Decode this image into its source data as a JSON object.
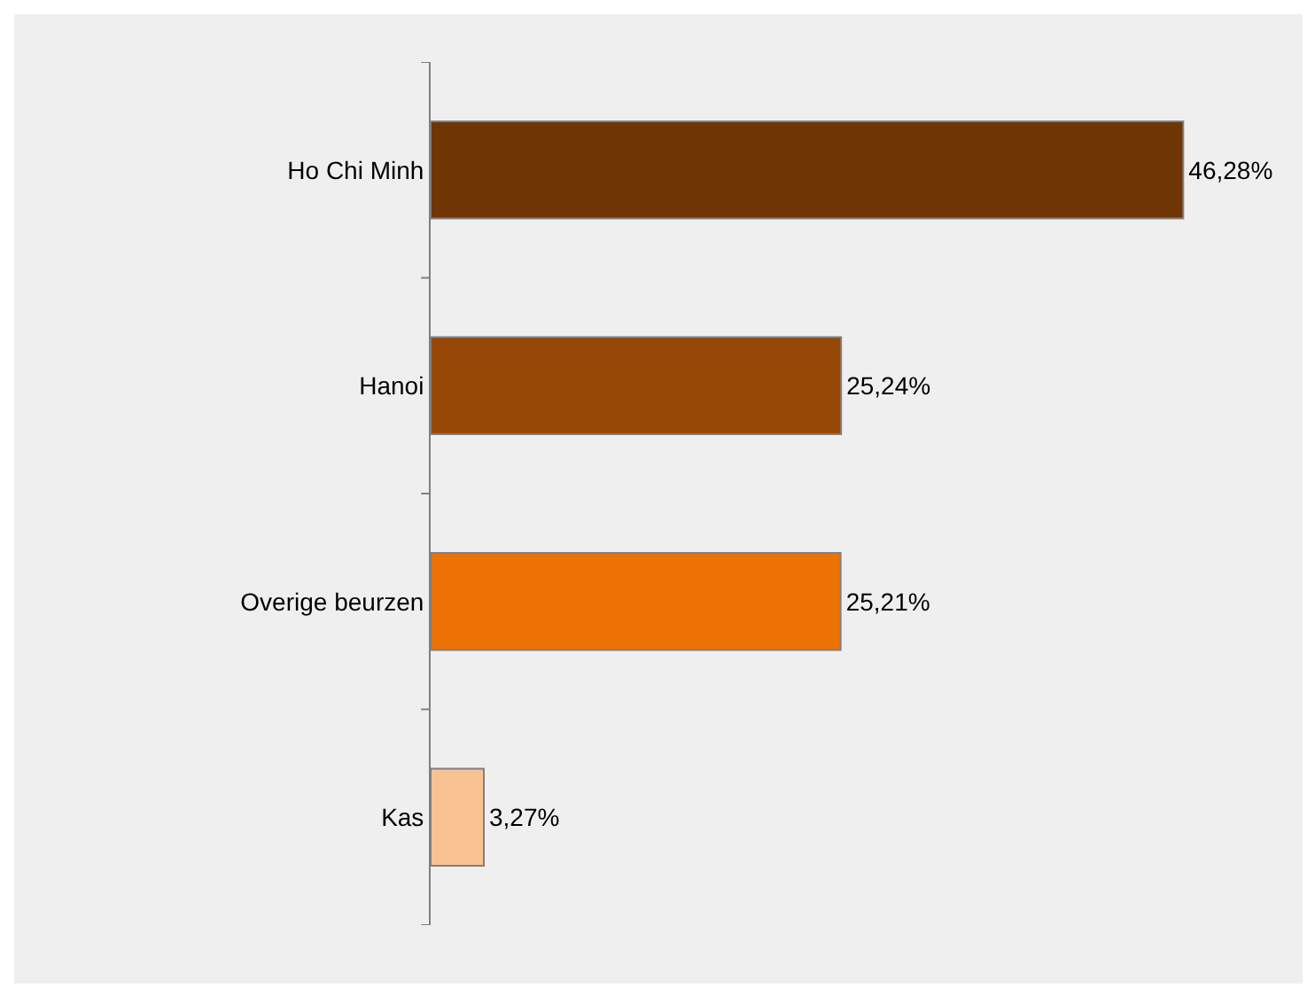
{
  "chart_data": {
    "type": "bar",
    "orientation": "horizontal",
    "categories": [
      "Ho Chi Minh",
      "Hanoi",
      "Overige beurzen",
      "Kas"
    ],
    "values": [
      46.28,
      25.24,
      25.21,
      3.27
    ],
    "colors": [
      "#6f3504",
      "#974807",
      "#ec7206",
      "#f9c293"
    ],
    "value_labels": [
      "46,28%",
      "25,24%",
      "25,21%",
      "3,27%"
    ],
    "legend": false
  }
}
